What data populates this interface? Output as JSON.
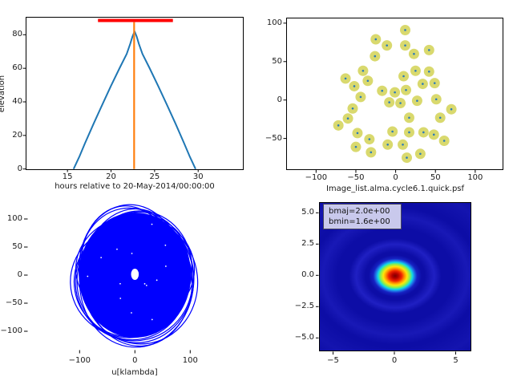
{
  "figure": {
    "background": "#ffffff",
    "text_color": "#1a1a1a"
  },
  "chart_data": [
    {
      "id": "elevation-track",
      "type": "line",
      "xlabel": "hours relative to 20-May-2014/00:00:00",
      "ylabel": "elevation",
      "xlim": [
        10.2,
        35.1
      ],
      "ylim": [
        0,
        90.7
      ],
      "grid": false,
      "xtick_vals": [
        15,
        20,
        25,
        30
      ],
      "xtick_labels": [
        "15",
        "20",
        "25",
        "30"
      ],
      "ytick_vals": [
        0,
        20,
        40,
        60,
        80
      ],
      "ytick_labels": [
        "0",
        "20",
        "40",
        "60",
        "80"
      ],
      "series": [
        {
          "name": "source-elevation",
          "color": "#1f77b4",
          "points": [
            [
              15.7,
              0
            ],
            [
              16.4,
              7.8
            ],
            [
              17,
              15.2
            ],
            [
              18,
              27
            ],
            [
              19,
              38.4
            ],
            [
              20,
              49.6
            ],
            [
              21,
              60.3
            ],
            [
              21.8,
              68.6
            ],
            [
              22.2,
              74.5
            ],
            [
              22.45,
              78.8
            ],
            [
              22.7,
              82
            ],
            [
              22.95,
              78.8
            ],
            [
              23.2,
              74.5
            ],
            [
              23.6,
              68.6
            ],
            [
              24.4,
              60.3
            ],
            [
              25.4,
              49.6
            ],
            [
              26.4,
              38.4
            ],
            [
              27.4,
              27
            ],
            [
              28.4,
              15.2
            ],
            [
              29,
              7.8
            ],
            [
              29.7,
              0
            ]
          ]
        },
        {
          "name": "transit-marker",
          "type": "vline",
          "color": "#ff7f0e",
          "x": 22.65,
          "y0": 0,
          "y1": 87.5
        },
        {
          "name": "observation-window",
          "type": "hsegment",
          "color": "#ff0000",
          "y": 88.5,
          "x0": 18.5,
          "x1": 27.1
        }
      ]
    },
    {
      "id": "antenna-positions",
      "type": "scatter",
      "xlim": [
        -137,
        134
      ],
      "ylim": [
        -91,
        107
      ],
      "xtick_vals": [
        -100,
        -50,
        0,
        50,
        100
      ],
      "xtick_labels": [
        "−100",
        "−50",
        "0",
        "50",
        "100"
      ],
      "ytick_vals": [
        100,
        50,
        0,
        -50
      ],
      "ytick_labels": [
        "100",
        "50",
        "0",
        "−50"
      ],
      "marker": {
        "fill": "#d9d96e",
        "center_dot": "#2b7bba",
        "radius_px": 6.5
      },
      "points": [
        [
          12,
          91
        ],
        [
          -25,
          79
        ],
        [
          -11,
          71
        ],
        [
          12,
          71
        ],
        [
          42,
          65
        ],
        [
          23,
          60
        ],
        [
          -26,
          57
        ],
        [
          -41,
          38
        ],
        [
          25,
          38
        ],
        [
          42,
          37
        ],
        [
          10,
          31
        ],
        [
          -63,
          28
        ],
        [
          -35,
          25
        ],
        [
          34,
          21
        ],
        [
          49,
          22
        ],
        [
          -52,
          18
        ],
        [
          13,
          13
        ],
        [
          -17,
          12
        ],
        [
          -1,
          10
        ],
        [
          -44,
          4
        ],
        [
          51,
          1
        ],
        [
          27,
          -1
        ],
        [
          -8,
          -3
        ],
        [
          6,
          -4
        ],
        [
          -54,
          -11
        ],
        [
          70,
          -12
        ],
        [
          17,
          -23
        ],
        [
          56,
          -23
        ],
        [
          -60,
          -24
        ],
        [
          -72,
          -33
        ],
        [
          -4,
          -41
        ],
        [
          17,
          -42
        ],
        [
          35,
          -42
        ],
        [
          -48,
          -43
        ],
        [
          48,
          -45
        ],
        [
          -33,
          -51
        ],
        [
          61,
          -53
        ],
        [
          -10,
          -58
        ],
        [
          9,
          -58
        ],
        [
          -50,
          -61
        ],
        [
          -31,
          -68
        ],
        [
          31,
          -70
        ],
        [
          14,
          -75
        ]
      ]
    },
    {
      "id": "uv-coverage",
      "type": "scatter",
      "xlabel": "u[klambda]",
      "color": "#0000ff",
      "xtick_vals": [
        -100,
        0,
        100
      ],
      "xtick_labels": [
        "−100",
        "0",
        "100"
      ],
      "ytick_vals": [
        100,
        50,
        0,
        -50,
        -100
      ],
      "ytick_labels": [
        "100",
        "50",
        "0",
        "−50",
        "−100"
      ],
      "outer_radius_u": 112,
      "outer_radius_v": 118,
      "hole_radius_u": 7,
      "hole_radius_v": 10,
      "center": [
        0,
        0
      ]
    },
    {
      "id": "psf-image",
      "type": "heatmap",
      "title": "Image_list.alma.cycle6.1.quick.psf",
      "colormap": "jet",
      "xlim": [
        -6.1,
        6.2
      ],
      "ylim": [
        -6.1,
        5.9
      ],
      "xtick_vals": [
        -5,
        0,
        5
      ],
      "xtick_labels": [
        "−5",
        "0",
        "5"
      ],
      "ytick_vals": [
        5.0,
        2.5,
        0.0,
        -2.5,
        -5.0
      ],
      "ytick_labels": [
        "5.0",
        "2.5",
        "0.0",
        "−2.5",
        "−5.0"
      ],
      "annotation": {
        "lines": [
          "bmaj=2.0e+00",
          "bmin=1.6e+00"
        ],
        "bg": "#c9c9ec"
      },
      "beam": {
        "bmaj": 2.0,
        "bmin": 1.6,
        "center": [
          0,
          0
        ]
      }
    }
  ]
}
